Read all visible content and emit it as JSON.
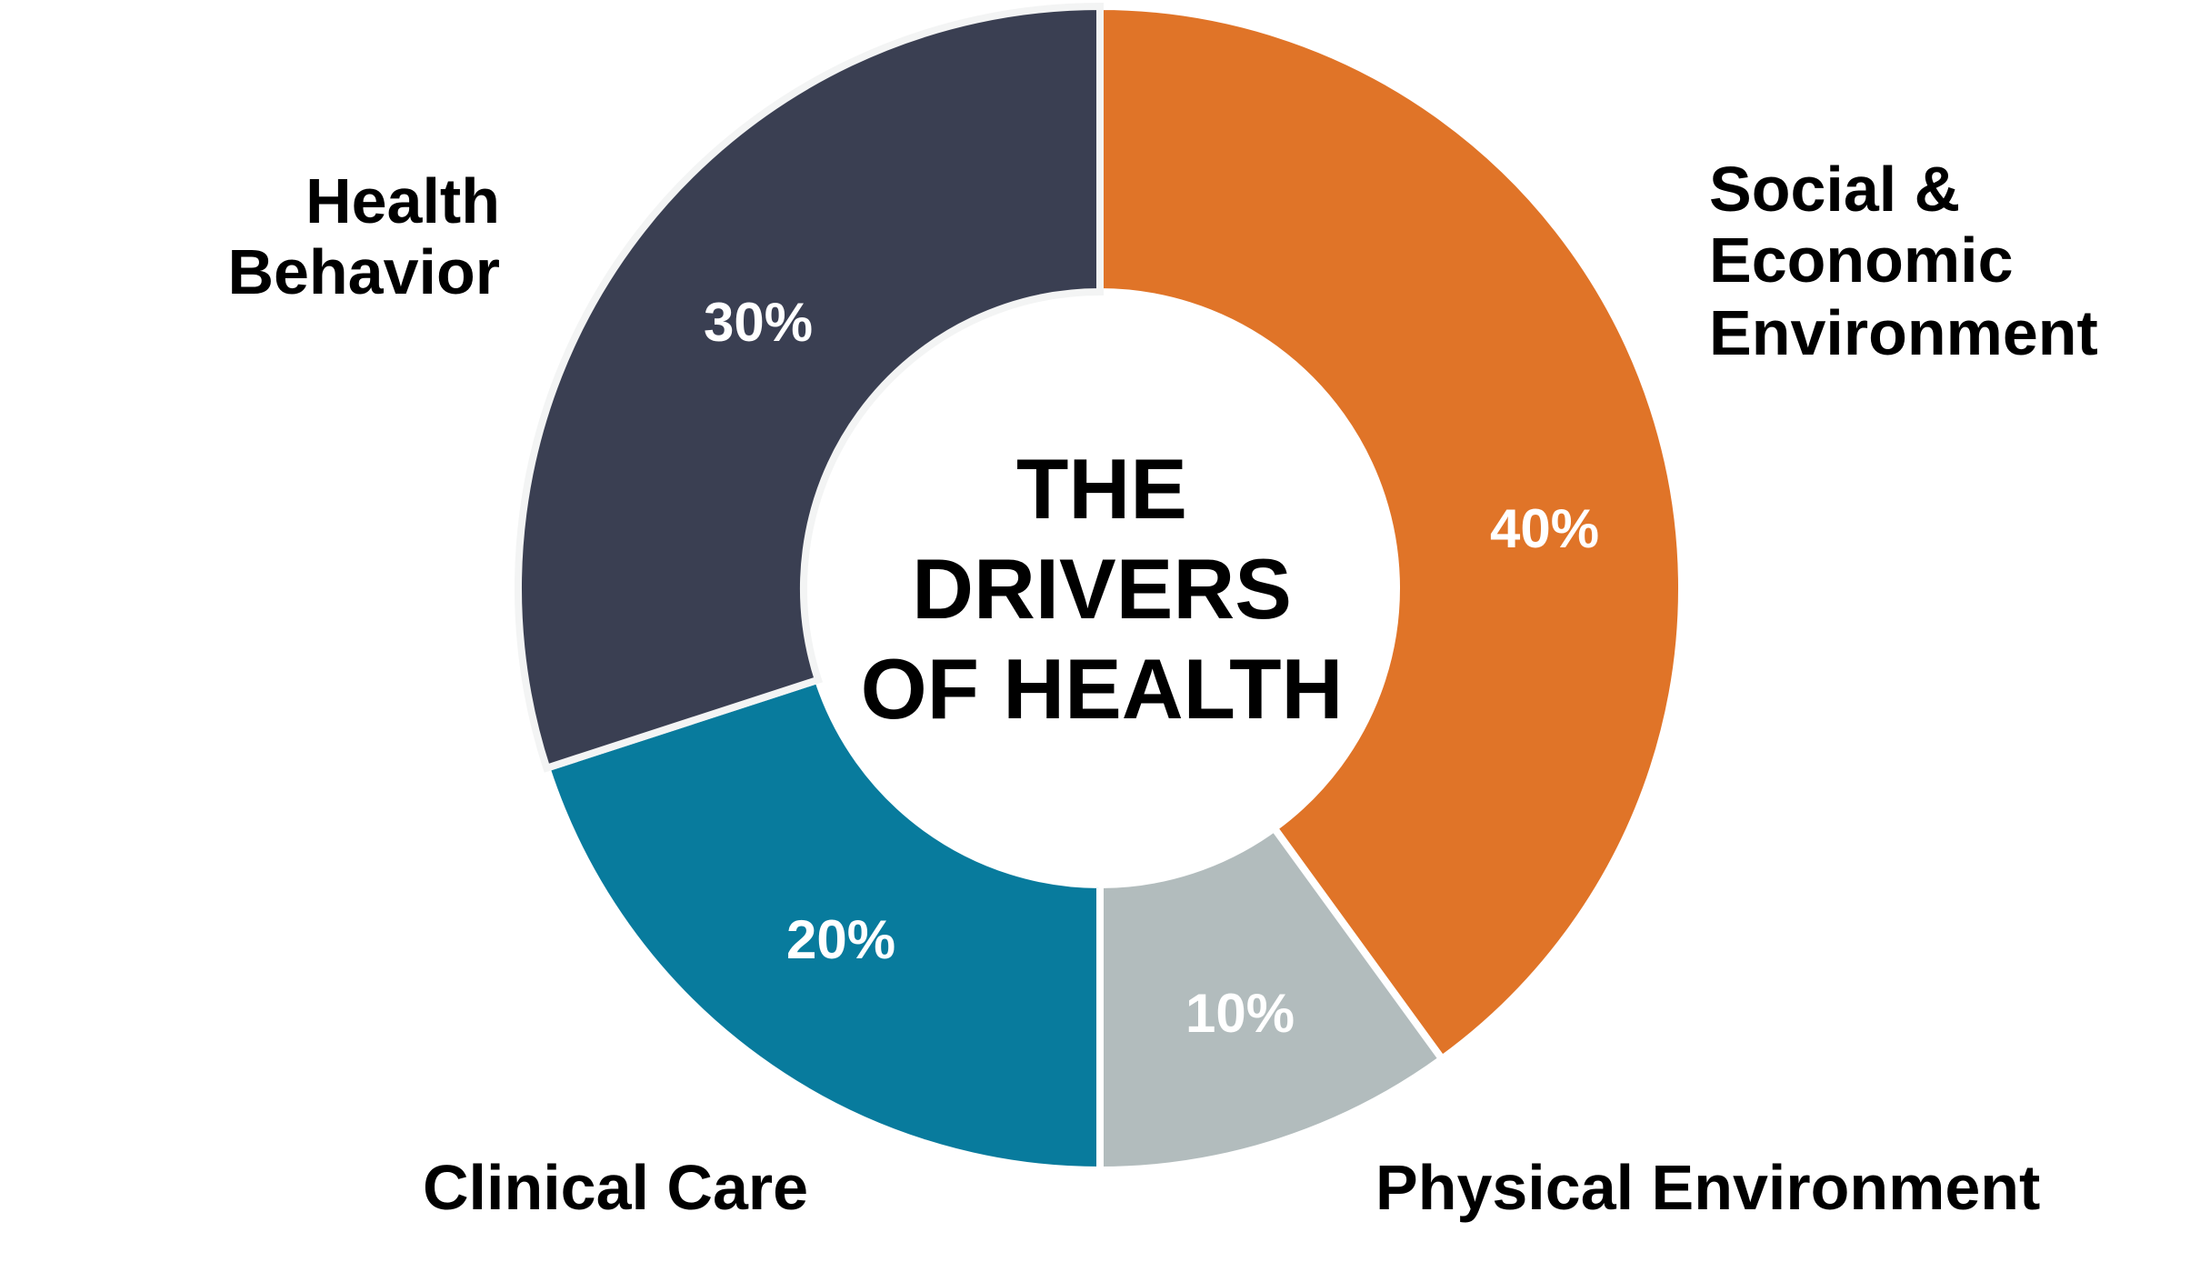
{
  "chart_data": {
    "type": "pie",
    "variant": "donut",
    "title_lines": [
      "THE",
      "DRIVERS",
      "OF HEALTH"
    ],
    "start": "top",
    "direction": "clockwise",
    "slices": [
      {
        "label_lines": [
          "Social &",
          "Economic",
          "Environment"
        ],
        "value": 40,
        "value_label": "40%",
        "color": "#E07428"
      },
      {
        "label_lines": [
          "Physical Environment"
        ],
        "value": 10,
        "value_label": "10%",
        "color": "#B2BCBD"
      },
      {
        "label_lines": [
          "Clinical Care"
        ],
        "value": 20,
        "value_label": "20%",
        "color": "#087B9D"
      },
      {
        "label_lines": [
          "Health",
          "Behavior"
        ],
        "value": 30,
        "value_label": "30%",
        "color": "#3A3F52"
      }
    ]
  }
}
